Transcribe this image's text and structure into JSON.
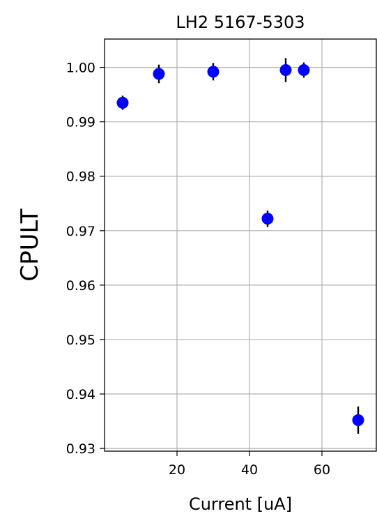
{
  "chart_data": {
    "type": "scatter",
    "title": "LH2 5167-5303",
    "xlabel": "Current [uA]",
    "ylabel": "CPULT",
    "xlim": [
      0,
      75
    ],
    "ylim": [
      0.9295,
      1.0052
    ],
    "xticks": [
      20,
      40,
      60
    ],
    "xtick_labels": [
      "20",
      "40",
      "60"
    ],
    "yticks": [
      0.93,
      0.94,
      0.95,
      0.96,
      0.97,
      0.98,
      0.99,
      1.0
    ],
    "ytick_labels": [
      "0.93",
      "0.94",
      "0.95",
      "0.96",
      "0.97",
      "0.98",
      "0.99",
      "1.00"
    ],
    "grid": true,
    "marker_color": "#0000ff",
    "errorbar_color": "#000000",
    "series": [
      {
        "x": [
          5,
          15,
          30,
          45,
          50,
          55,
          70
        ],
        "y": [
          0.9935,
          0.9988,
          0.9992,
          0.9722,
          0.9995,
          0.9995,
          0.9352
        ],
        "yerr": [
          0.0013,
          0.0017,
          0.0016,
          0.0015,
          0.0022,
          0.0014,
          0.0025
        ]
      }
    ]
  }
}
